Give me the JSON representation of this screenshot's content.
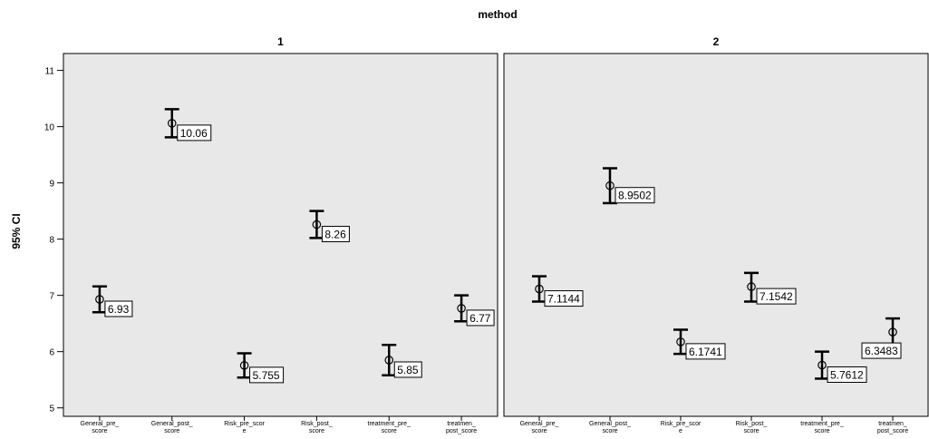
{
  "chart_data": {
    "type": "errorbar",
    "title": "method",
    "ylabel": "95% CI",
    "ylim": [
      4.85,
      11.3
    ],
    "yticks": [
      5,
      6,
      7,
      8,
      9,
      10,
      11
    ],
    "categories": [
      [
        "General_pre_",
        "score"
      ],
      [
        "General_post_",
        "score"
      ],
      [
        "Risk_pre_scor",
        "e"
      ],
      [
        "Risk_post_",
        "score"
      ],
      [
        "treatment_pre_",
        "score"
      ],
      [
        "treatmen_",
        "post_score"
      ]
    ],
    "panels": [
      {
        "name": "1",
        "points": [
          {
            "mean": 6.93,
            "low": 6.7,
            "high": 7.16,
            "label": "6.93"
          },
          {
            "mean": 10.06,
            "low": 9.81,
            "high": 10.31,
            "label": "10.06"
          },
          {
            "mean": 5.755,
            "low": 5.54,
            "high": 5.97,
            "label": "5.755"
          },
          {
            "mean": 8.26,
            "low": 8.02,
            "high": 8.5,
            "label": "8.26"
          },
          {
            "mean": 5.85,
            "low": 5.58,
            "high": 6.12,
            "label": "5.85"
          },
          {
            "mean": 6.77,
            "low": 6.54,
            "high": 7.0,
            "label": "6.77"
          }
        ]
      },
      {
        "name": "2",
        "points": [
          {
            "mean": 7.1144,
            "low": 6.89,
            "high": 7.34,
            "label": "7.1144"
          },
          {
            "mean": 8.9502,
            "low": 8.64,
            "high": 9.26,
            "label": "8.9502"
          },
          {
            "mean": 6.1741,
            "low": 5.96,
            "high": 6.39,
            "label": "6.1741"
          },
          {
            "mean": 7.1542,
            "low": 6.89,
            "high": 7.4,
            "label": "7.1542"
          },
          {
            "mean": 5.7612,
            "low": 5.52,
            "high": 6.0,
            "label": "5.7612"
          },
          {
            "mean": 6.3483,
            "low": 6.13,
            "high": 6.59,
            "label": "6.3483"
          }
        ]
      }
    ],
    "label_positions": [
      "right",
      "right",
      "right",
      "right",
      "right",
      "right",
      "right",
      "right",
      "right",
      "right",
      "right",
      "below-left"
    ],
    "colors": {
      "panel_bg": "#e8e8e8",
      "frame": "#000000",
      "marker": "#000000"
    }
  }
}
